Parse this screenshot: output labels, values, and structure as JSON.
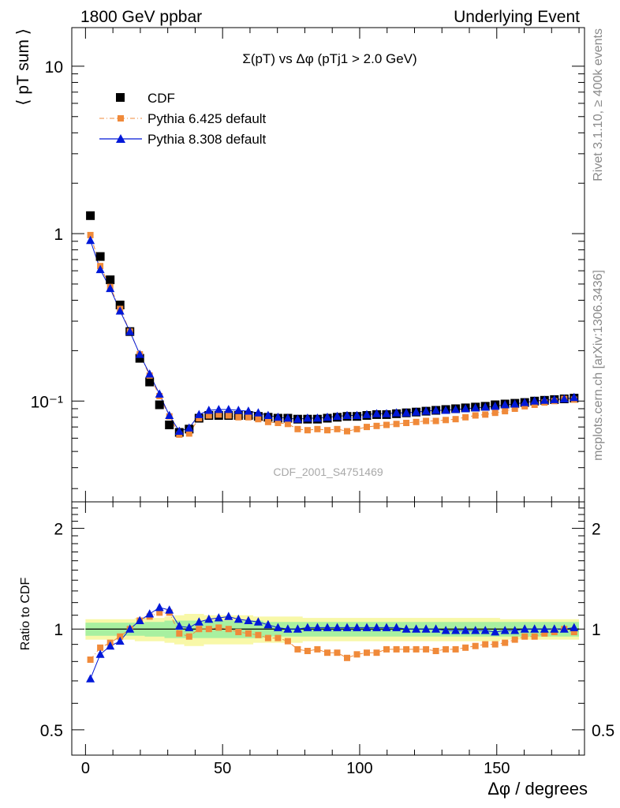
{
  "header": {
    "left": "1800 GeV ppbar",
    "right": "Underlying Event"
  },
  "side_text": {
    "rivet": "Rivet 3.1.10, ≥ 400k events",
    "mcplots": "mcplots.cern.ch [arXiv:1306.3436]"
  },
  "watermark": "CDF_2001_S4751469",
  "colors": {
    "data": "#000000",
    "pythia6": "#f08a3a",
    "pythia8": "#0018d8",
    "band_inner": "#a8f0a0",
    "band_outer": "#f8f8a8"
  },
  "chart_data": [
    {
      "type": "scatter",
      "title": "Σ(pT) vs Δφ (pTj1 > 2.0 GeV)",
      "ylabel": "⟨ pT sum ⟩",
      "yscale": "log",
      "ylim": [
        0.025,
        17
      ],
      "xlim": [
        -5,
        182
      ],
      "xlabel": "Δφ / degrees",
      "xticks": [
        0,
        50,
        100,
        150
      ],
      "yticks": [
        {
          "v": 0.1,
          "label": "10⁻¹"
        },
        {
          "v": 1,
          "label": "1"
        },
        {
          "v": 10,
          "label": "10"
        }
      ],
      "legend_position": "top-left",
      "legend": [
        {
          "key": "data",
          "label": "CDF"
        },
        {
          "key": "p6",
          "label": "Pythia 6.425 default"
        },
        {
          "key": "p8",
          "label": "Pythia 8.308 default"
        }
      ],
      "x": [
        1.8,
        5.4,
        9,
        12.6,
        16.2,
        19.8,
        23.4,
        27,
        30.6,
        34.2,
        37.8,
        41.4,
        45,
        48.6,
        52.2,
        55.8,
        59.4,
        63,
        66.6,
        70.2,
        73.8,
        77.4,
        81,
        84.6,
        88.2,
        91.8,
        95.4,
        99,
        102.6,
        106.2,
        109.8,
        113.4,
        117,
        120.6,
        124.2,
        127.8,
        131.4,
        135,
        138.6,
        142.2,
        145.8,
        149.4,
        153,
        156.6,
        160.2,
        163.8,
        167.4,
        171,
        174.6,
        178.2
      ],
      "series": [
        {
          "key": "data",
          "name": "CDF",
          "values": [
            1.28,
            0.73,
            0.53,
            0.375,
            0.26,
            0.18,
            0.13,
            0.095,
            0.072,
            0.065,
            0.068,
            0.079,
            0.082,
            0.082,
            0.082,
            0.082,
            0.082,
            0.081,
            0.08,
            0.079,
            0.079,
            0.078,
            0.078,
            0.078,
            0.079,
            0.08,
            0.081,
            0.081,
            0.082,
            0.083,
            0.083,
            0.084,
            0.085,
            0.086,
            0.087,
            0.088,
            0.089,
            0.09,
            0.091,
            0.092,
            0.093,
            0.095,
            0.096,
            0.097,
            0.098,
            0.1,
            0.101,
            0.102,
            0.103,
            0.104
          ]
        },
        {
          "key": "p6",
          "name": "Pythia 6.425 default",
          "values": [
            0.98,
            0.64,
            0.48,
            0.355,
            0.26,
            0.19,
            0.142,
            0.107,
            0.081,
            0.063,
            0.064,
            0.079,
            0.082,
            0.083,
            0.082,
            0.08,
            0.08,
            0.078,
            0.075,
            0.074,
            0.073,
            0.068,
            0.067,
            0.068,
            0.067,
            0.068,
            0.066,
            0.068,
            0.07,
            0.071,
            0.072,
            0.073,
            0.074,
            0.075,
            0.076,
            0.076,
            0.077,
            0.078,
            0.08,
            0.082,
            0.083,
            0.085,
            0.087,
            0.09,
            0.093,
            0.095,
            0.098,
            0.1,
            0.103,
            0.102
          ]
        },
        {
          "key": "p8",
          "name": "Pythia 8.308 default",
          "values": [
            0.91,
            0.61,
            0.47,
            0.345,
            0.26,
            0.19,
            0.145,
            0.11,
            0.082,
            0.066,
            0.069,
            0.083,
            0.088,
            0.089,
            0.089,
            0.088,
            0.087,
            0.085,
            0.082,
            0.08,
            0.079,
            0.078,
            0.079,
            0.079,
            0.08,
            0.081,
            0.082,
            0.082,
            0.083,
            0.084,
            0.084,
            0.085,
            0.085,
            0.086,
            0.087,
            0.088,
            0.088,
            0.089,
            0.09,
            0.091,
            0.092,
            0.093,
            0.095,
            0.096,
            0.098,
            0.1,
            0.101,
            0.102,
            0.103,
            0.105
          ]
        }
      ]
    },
    {
      "type": "line",
      "ylabel": "Ratio to CDF",
      "yscale": "log",
      "ylim": [
        0.42,
        2.4
      ],
      "xlim": [
        -5,
        182
      ],
      "xlabel": "Δφ / degrees",
      "yticks": [
        {
          "v": 0.5,
          "label": "0.5"
        },
        {
          "v": 1,
          "label": "1"
        },
        {
          "v": 2,
          "label": "2"
        }
      ],
      "band_inner": [
        0.045,
        0.045,
        0.045,
        0.045,
        0.045,
        0.045,
        0.05,
        0.05,
        0.06,
        0.06,
        0.06,
        0.06,
        0.06,
        0.06,
        0.06,
        0.06,
        0.06,
        0.06,
        0.05,
        0.05,
        0.05,
        0.05,
        0.05,
        0.05,
        0.05,
        0.05,
        0.05,
        0.05,
        0.05,
        0.05,
        0.05,
        0.05,
        0.05,
        0.05,
        0.05,
        0.05,
        0.05,
        0.05,
        0.05,
        0.05,
        0.05,
        0.05,
        0.05,
        0.05,
        0.05,
        0.05,
        0.05,
        0.05,
        0.05,
        0.05
      ],
      "band_outer": [
        0.07,
        0.07,
        0.07,
        0.07,
        0.07,
        0.08,
        0.08,
        0.08,
        0.09,
        0.1,
        0.11,
        0.11,
        0.1,
        0.1,
        0.1,
        0.1,
        0.1,
        0.09,
        0.09,
        0.09,
        0.09,
        0.09,
        0.08,
        0.08,
        0.08,
        0.08,
        0.08,
        0.08,
        0.08,
        0.08,
        0.08,
        0.08,
        0.08,
        0.08,
        0.08,
        0.08,
        0.08,
        0.08,
        0.08,
        0.08,
        0.08,
        0.08,
        0.07,
        0.07,
        0.07,
        0.07,
        0.07,
        0.07,
        0.07,
        0.07
      ],
      "series": [
        {
          "key": "p6",
          "name": "Pythia 6.425 default",
          "values": [
            0.81,
            0.88,
            0.91,
            0.95,
            1.0,
            1.06,
            1.09,
            1.12,
            1.12,
            0.97,
            0.95,
            1.0,
            1.0,
            1.01,
            1.0,
            0.98,
            0.97,
            0.96,
            0.94,
            0.94,
            0.92,
            0.87,
            0.86,
            0.87,
            0.85,
            0.85,
            0.82,
            0.84,
            0.85,
            0.85,
            0.87,
            0.87,
            0.87,
            0.87,
            0.87,
            0.86,
            0.87,
            0.87,
            0.88,
            0.89,
            0.9,
            0.9,
            0.91,
            0.93,
            0.95,
            0.95,
            0.97,
            0.98,
            1.0,
            0.98
          ]
        },
        {
          "key": "p8",
          "name": "Pythia 8.308 default",
          "values": [
            0.71,
            0.84,
            0.89,
            0.92,
            1.0,
            1.06,
            1.11,
            1.16,
            1.14,
            1.02,
            1.01,
            1.05,
            1.07,
            1.08,
            1.09,
            1.07,
            1.06,
            1.05,
            1.03,
            1.01,
            1.0,
            1.0,
            1.01,
            1.01,
            1.01,
            1.01,
            1.01,
            1.01,
            1.01,
            1.01,
            1.01,
            1.01,
            1.0,
            1.0,
            1.0,
            1.0,
            0.99,
            0.99,
            0.99,
            0.99,
            0.99,
            0.98,
            0.99,
            0.99,
            1.0,
            1.0,
            1.0,
            1.0,
            1.0,
            1.01
          ]
        }
      ]
    }
  ]
}
